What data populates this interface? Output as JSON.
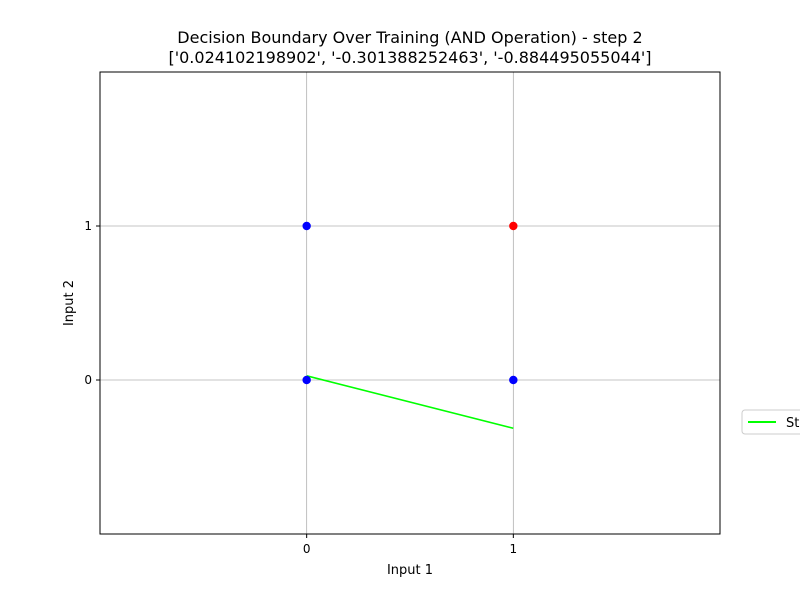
{
  "chart_data": {
    "type": "scatter",
    "title_line1": "Decision Boundary Over Training (AND Operation) - step 2",
    "title_line2": "['0.024102198902', '-0.301388252463', '-0.884495055044']",
    "xlabel": "Input 1",
    "ylabel": "Input 2",
    "xlim": [
      -1,
      2
    ],
    "ylim": [
      -1,
      2
    ],
    "xticks": [
      0,
      1
    ],
    "yticks": [
      0,
      1
    ],
    "grid": true,
    "points": [
      {
        "x": 0,
        "y": 0,
        "color": "#0000ff"
      },
      {
        "x": 0,
        "y": 1,
        "color": "#0000ff"
      },
      {
        "x": 1,
        "y": 0,
        "color": "#0000ff"
      },
      {
        "x": 1,
        "y": 1,
        "color": "#ff0000"
      }
    ],
    "series": [
      {
        "name": "St",
        "color": "#00ff00",
        "x": [
          0,
          1
        ],
        "y": [
          0.0272,
          -0.3135
        ]
      }
    ],
    "legend_placement": "right"
  }
}
